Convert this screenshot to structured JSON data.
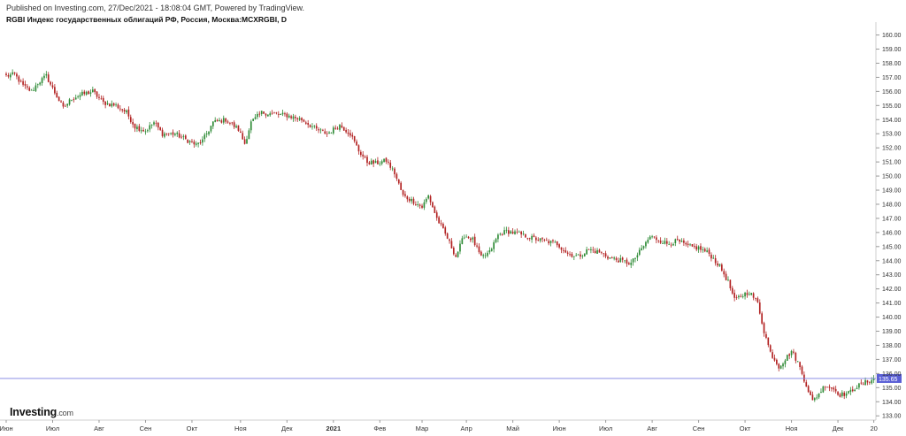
{
  "header": {
    "published": "Published on Investing.com, 27/Dec/2021 - 18:08:04 GMT, Powered by TradingView.",
    "title": "RGBI Индекс государственных облигаций РФ, Россия, Москва:MCXRGBI, D"
  },
  "logo": {
    "name": "Investing",
    "suffix": ".com"
  },
  "colors": {
    "up": "#2e8b36",
    "down": "#b22222",
    "price_line": "#7b7fe0",
    "price_label_bg": "#5a5fd6",
    "grid": "#cfcfcf",
    "axis_text": "#333333"
  },
  "chart_data": {
    "type": "candlestick",
    "title": "RGBI Индекс государственных облигаций РФ, Россия, Москва:MCXRGBI, D",
    "interval": "D",
    "ylim": [
      132.7,
      160.6
    ],
    "y_ticks": [
      133,
      134,
      135,
      136,
      137,
      138,
      139,
      140,
      141,
      142,
      143,
      144,
      145,
      146,
      147,
      148,
      149,
      150,
      151,
      152,
      153,
      154,
      155,
      156,
      157,
      158,
      159,
      160
    ],
    "x_ticks": [
      {
        "label": "Июн",
        "idx": 0
      },
      {
        "label": "Июл",
        "idx": 22
      },
      {
        "label": "Авг",
        "idx": 44
      },
      {
        "label": "Сен",
        "idx": 66
      },
      {
        "label": "Окт",
        "idx": 88
      },
      {
        "label": "Ноя",
        "idx": 111
      },
      {
        "label": "Дек",
        "idx": 133
      },
      {
        "label": "2021",
        "idx": 155
      },
      {
        "label": "Фев",
        "idx": 177
      },
      {
        "label": "Мар",
        "idx": 197
      },
      {
        "label": "Апр",
        "idx": 218
      },
      {
        "label": "Май",
        "idx": 240
      },
      {
        "label": "Июн",
        "idx": 262
      },
      {
        "label": "Июл",
        "idx": 284
      },
      {
        "label": "Авг",
        "idx": 306
      },
      {
        "label": "Сен",
        "idx": 328
      },
      {
        "label": "Окт",
        "idx": 350
      },
      {
        "label": "Ноя",
        "idx": 372
      },
      {
        "label": "Дек",
        "idx": 394
      },
      {
        "label": "20",
        "idx": 411
      }
    ],
    "last_price": 135.65,
    "last_price_label": "135.65",
    "trend_anchors": [
      [
        0,
        157.1
      ],
      [
        4,
        157.2
      ],
      [
        8,
        156.4
      ],
      [
        12,
        156.0
      ],
      [
        15,
        156.6
      ],
      [
        19,
        157.1
      ],
      [
        22,
        156.2
      ],
      [
        27,
        154.8
      ],
      [
        31,
        155.5
      ],
      [
        36,
        155.8
      ],
      [
        41,
        156.0
      ],
      [
        46,
        155.2
      ],
      [
        52,
        155.0
      ],
      [
        57,
        154.5
      ],
      [
        61,
        153.5
      ],
      [
        66,
        153.2
      ],
      [
        70,
        153.8
      ],
      [
        74,
        153.0
      ],
      [
        80,
        153.0
      ],
      [
        85,
        152.6
      ],
      [
        90,
        152.2
      ],
      [
        93,
        152.5
      ],
      [
        98,
        153.8
      ],
      [
        104,
        154.0
      ],
      [
        110,
        153.3
      ],
      [
        113,
        152.3
      ],
      [
        116,
        153.8
      ],
      [
        121,
        154.5
      ],
      [
        127,
        154.4
      ],
      [
        133,
        154.3
      ],
      [
        140,
        154.0
      ],
      [
        147,
        153.3
      ],
      [
        152,
        153.0
      ],
      [
        158,
        153.6
      ],
      [
        163,
        153.0
      ],
      [
        167,
        151.8
      ],
      [
        171,
        151.0
      ],
      [
        175,
        150.9
      ],
      [
        180,
        151.1
      ],
      [
        184,
        150.2
      ],
      [
        188,
        148.6
      ],
      [
        193,
        148.2
      ],
      [
        197,
        147.8
      ],
      [
        200,
        148.6
      ],
      [
        204,
        147.0
      ],
      [
        209,
        145.6
      ],
      [
        213,
        144.3
      ],
      [
        217,
        145.8
      ],
      [
        221,
        145.5
      ],
      [
        225,
        144.2
      ],
      [
        229,
        144.6
      ],
      [
        233,
        145.8
      ],
      [
        237,
        146.1
      ],
      [
        243,
        145.9
      ],
      [
        249,
        145.6
      ],
      [
        255,
        145.4
      ],
      [
        261,
        145.2
      ],
      [
        266,
        144.5
      ],
      [
        271,
        144.3
      ],
      [
        276,
        144.8
      ],
      [
        281,
        144.6
      ],
      [
        286,
        144.2
      ],
      [
        291,
        144.0
      ],
      [
        296,
        143.8
      ],
      [
        300,
        144.6
      ],
      [
        305,
        145.7
      ],
      [
        309,
        145.5
      ],
      [
        313,
        145.2
      ],
      [
        318,
        145.4
      ],
      [
        323,
        145.0
      ],
      [
        328,
        144.9
      ],
      [
        333,
        144.5
      ],
      [
        338,
        143.6
      ],
      [
        342,
        142.5
      ],
      [
        345,
        141.2
      ],
      [
        348,
        141.5
      ],
      [
        352,
        141.8
      ],
      [
        356,
        141.0
      ],
      [
        359,
        139.0
      ],
      [
        362,
        137.5
      ],
      [
        366,
        136.5
      ],
      [
        369,
        137.0
      ],
      [
        372,
        137.6
      ],
      [
        375,
        136.8
      ],
      [
        378,
        135.6
      ],
      [
        382,
        134.0
      ],
      [
        385,
        134.6
      ],
      [
        388,
        135.2
      ],
      [
        392,
        134.9
      ],
      [
        395,
        134.5
      ],
      [
        399,
        134.6
      ],
      [
        402,
        135.0
      ],
      [
        406,
        135.3
      ],
      [
        411,
        135.65
      ]
    ]
  }
}
